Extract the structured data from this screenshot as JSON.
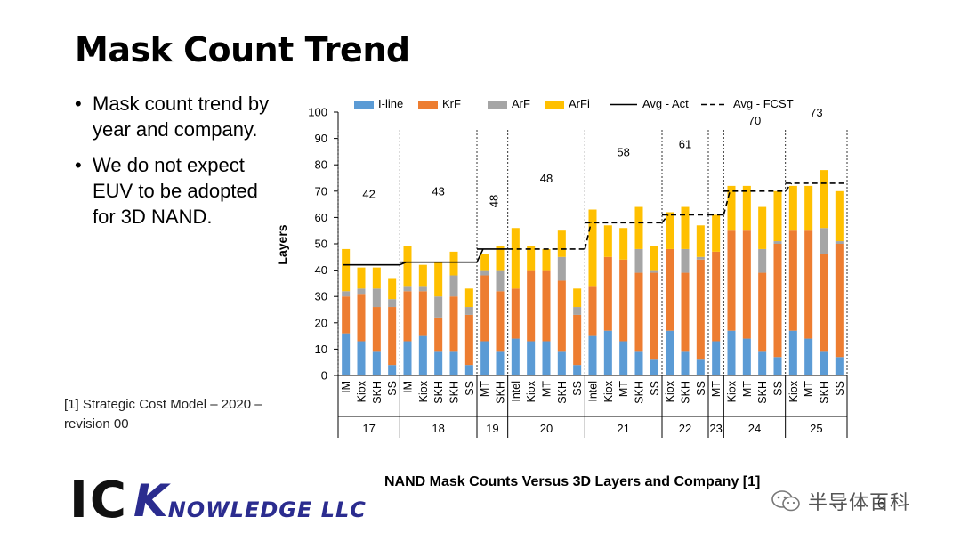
{
  "slide": {
    "title": "Mask Count Trend",
    "bullets": [
      "Mask count trend by year and company.",
      "We do not expect EUV to be adopted for 3D NAND."
    ],
    "bullet_glyph": "•",
    "reference": "[1] Strategic Cost Model – 2020 – revision 00",
    "logo": {
      "ic": "IC",
      "k": "K",
      "rest": "NOWLEDGE LLC"
    },
    "caption": "NAND Mask Counts Versus 3D Layers and Company [1]",
    "page_number": "6",
    "watermark": "半导体百科"
  },
  "chart_data": {
    "type": "bar",
    "stacked": true,
    "ylabel": "Layers",
    "ylim": [
      0,
      100
    ],
    "yticks": [
      0,
      10,
      20,
      30,
      40,
      50,
      60,
      70,
      80,
      90,
      100
    ],
    "legend_position": "top",
    "colors": {
      "I-line": "#5b9bd5",
      "KrF": "#ed7d31",
      "ArF": "#a5a5a5",
      "ArFi": "#ffc000",
      "line": "#000000"
    },
    "legend": [
      {
        "name": "I-line",
        "kind": "bar"
      },
      {
        "name": "KrF",
        "kind": "bar"
      },
      {
        "name": "ArF",
        "kind": "bar"
      },
      {
        "name": "ArFi",
        "kind": "bar"
      },
      {
        "name": "Avg - Act",
        "kind": "line"
      },
      {
        "name": "Avg - FCST",
        "kind": "dashed"
      }
    ],
    "groups": [
      {
        "layers": "17",
        "avg_label": "42",
        "avg": 42,
        "avg_kind": "act",
        "bars": [
          {
            "company": "IM",
            "iline": 16,
            "krf": 14,
            "arf": 2,
            "arfi": 16
          },
          {
            "company": "Kiox",
            "iline": 13,
            "krf": 18,
            "arf": 2,
            "arfi": 8
          },
          {
            "company": "SKH",
            "iline": 9,
            "krf": 17,
            "arf": 7,
            "arfi": 8
          },
          {
            "company": "SS",
            "iline": 4,
            "krf": 22,
            "arf": 3,
            "arfi": 8
          }
        ]
      },
      {
        "layers": "18",
        "avg_label": "43",
        "avg": 43,
        "avg_kind": "act",
        "bars": [
          {
            "company": "IM",
            "iline": 13,
            "krf": 19,
            "arf": 2,
            "arfi": 15
          },
          {
            "company": "Kiox",
            "iline": 15,
            "krf": 17,
            "arf": 2,
            "arfi": 8
          },
          {
            "company": "SKH",
            "iline": 9,
            "krf": 13,
            "arf": 8,
            "arfi": 13
          },
          {
            "company": "SKH",
            "iline": 9,
            "krf": 21,
            "arf": 8,
            "arfi": 9
          },
          {
            "company": "SS",
            "iline": 4,
            "krf": 19,
            "arf": 3,
            "arfi": 7
          }
        ]
      },
      {
        "layers": "19",
        "avg_label": "48",
        "avg": 48,
        "avg_kind": "act",
        "bars": [
          {
            "company": "MT",
            "iline": 13,
            "krf": 25,
            "arf": 2,
            "arfi": 6
          },
          {
            "company": "SKH",
            "iline": 9,
            "krf": 23,
            "arf": 8,
            "arfi": 9
          }
        ]
      },
      {
        "layers": "20",
        "avg_label": "48",
        "avg": 48,
        "avg_kind": "fcst",
        "bars": [
          {
            "company": "Intel",
            "iline": 14,
            "krf": 19,
            "arf": 0,
            "arfi": 23
          },
          {
            "company": "Kiox",
            "iline": 13,
            "krf": 27,
            "arf": 0,
            "arfi": 9
          },
          {
            "company": "MT",
            "iline": 13,
            "krf": 27,
            "arf": 0,
            "arfi": 8
          },
          {
            "company": "SKH",
            "iline": 9,
            "krf": 27,
            "arf": 9,
            "arfi": 10
          },
          {
            "company": "SS",
            "iline": 4,
            "krf": 19,
            "arf": 3,
            "arfi": 7
          }
        ]
      },
      {
        "layers": "21",
        "avg_label": "58",
        "avg": 58,
        "avg_kind": "fcst",
        "bars": [
          {
            "company": "Intel",
            "iline": 15,
            "krf": 19,
            "arf": 0,
            "arfi": 29
          },
          {
            "company": "Kiox",
            "iline": 17,
            "krf": 28,
            "arf": 0,
            "arfi": 12
          },
          {
            "company": "MT",
            "iline": 13,
            "krf": 31,
            "arf": 0,
            "arfi": 12
          },
          {
            "company": "SKH",
            "iline": 9,
            "krf": 30,
            "arf": 9,
            "arfi": 16
          },
          {
            "company": "SS",
            "iline": 6,
            "krf": 33,
            "arf": 1,
            "arfi": 9
          }
        ]
      },
      {
        "layers": "22",
        "avg_label": "61",
        "avg": 61,
        "avg_kind": "fcst",
        "bars": [
          {
            "company": "Kiox",
            "iline": 17,
            "krf": 31,
            "arf": 0,
            "arfi": 14
          },
          {
            "company": "SKH",
            "iline": 9,
            "krf": 30,
            "arf": 9,
            "arfi": 16
          },
          {
            "company": "SS",
            "iline": 6,
            "krf": 38,
            "arf": 1,
            "arfi": 12
          }
        ]
      },
      {
        "layers": "23",
        "avg_label": "",
        "avg": 61,
        "avg_kind": "fcst",
        "bars": [
          {
            "company": "MT",
            "iline": 13,
            "krf": 34,
            "arf": 0,
            "arfi": 14
          }
        ]
      },
      {
        "layers": "24",
        "avg_label": "70",
        "avg": 70,
        "avg_kind": "fcst",
        "bars": [
          {
            "company": "Kiox",
            "iline": 17,
            "krf": 38,
            "arf": 0,
            "arfi": 17
          },
          {
            "company": "MT",
            "iline": 14,
            "krf": 41,
            "arf": 0,
            "arfi": 17
          },
          {
            "company": "SKH",
            "iline": 9,
            "krf": 30,
            "arf": 9,
            "arfi": 16
          },
          {
            "company": "SS",
            "iline": 7,
            "krf": 43,
            "arf": 1,
            "arfi": 19
          }
        ]
      },
      {
        "layers": "25",
        "avg_label": "73",
        "avg": 73,
        "avg_kind": "fcst",
        "bars": [
          {
            "company": "Kiox",
            "iline": 17,
            "krf": 38,
            "arf": 0,
            "arfi": 17
          },
          {
            "company": "MT",
            "iline": 14,
            "krf": 41,
            "arf": 0,
            "arfi": 17
          },
          {
            "company": "SKH",
            "iline": 9,
            "krf": 37,
            "arf": 10,
            "arfi": 22
          },
          {
            "company": "SS",
            "iline": 7,
            "krf": 43,
            "arf": 1,
            "arfi": 19
          }
        ]
      }
    ]
  }
}
